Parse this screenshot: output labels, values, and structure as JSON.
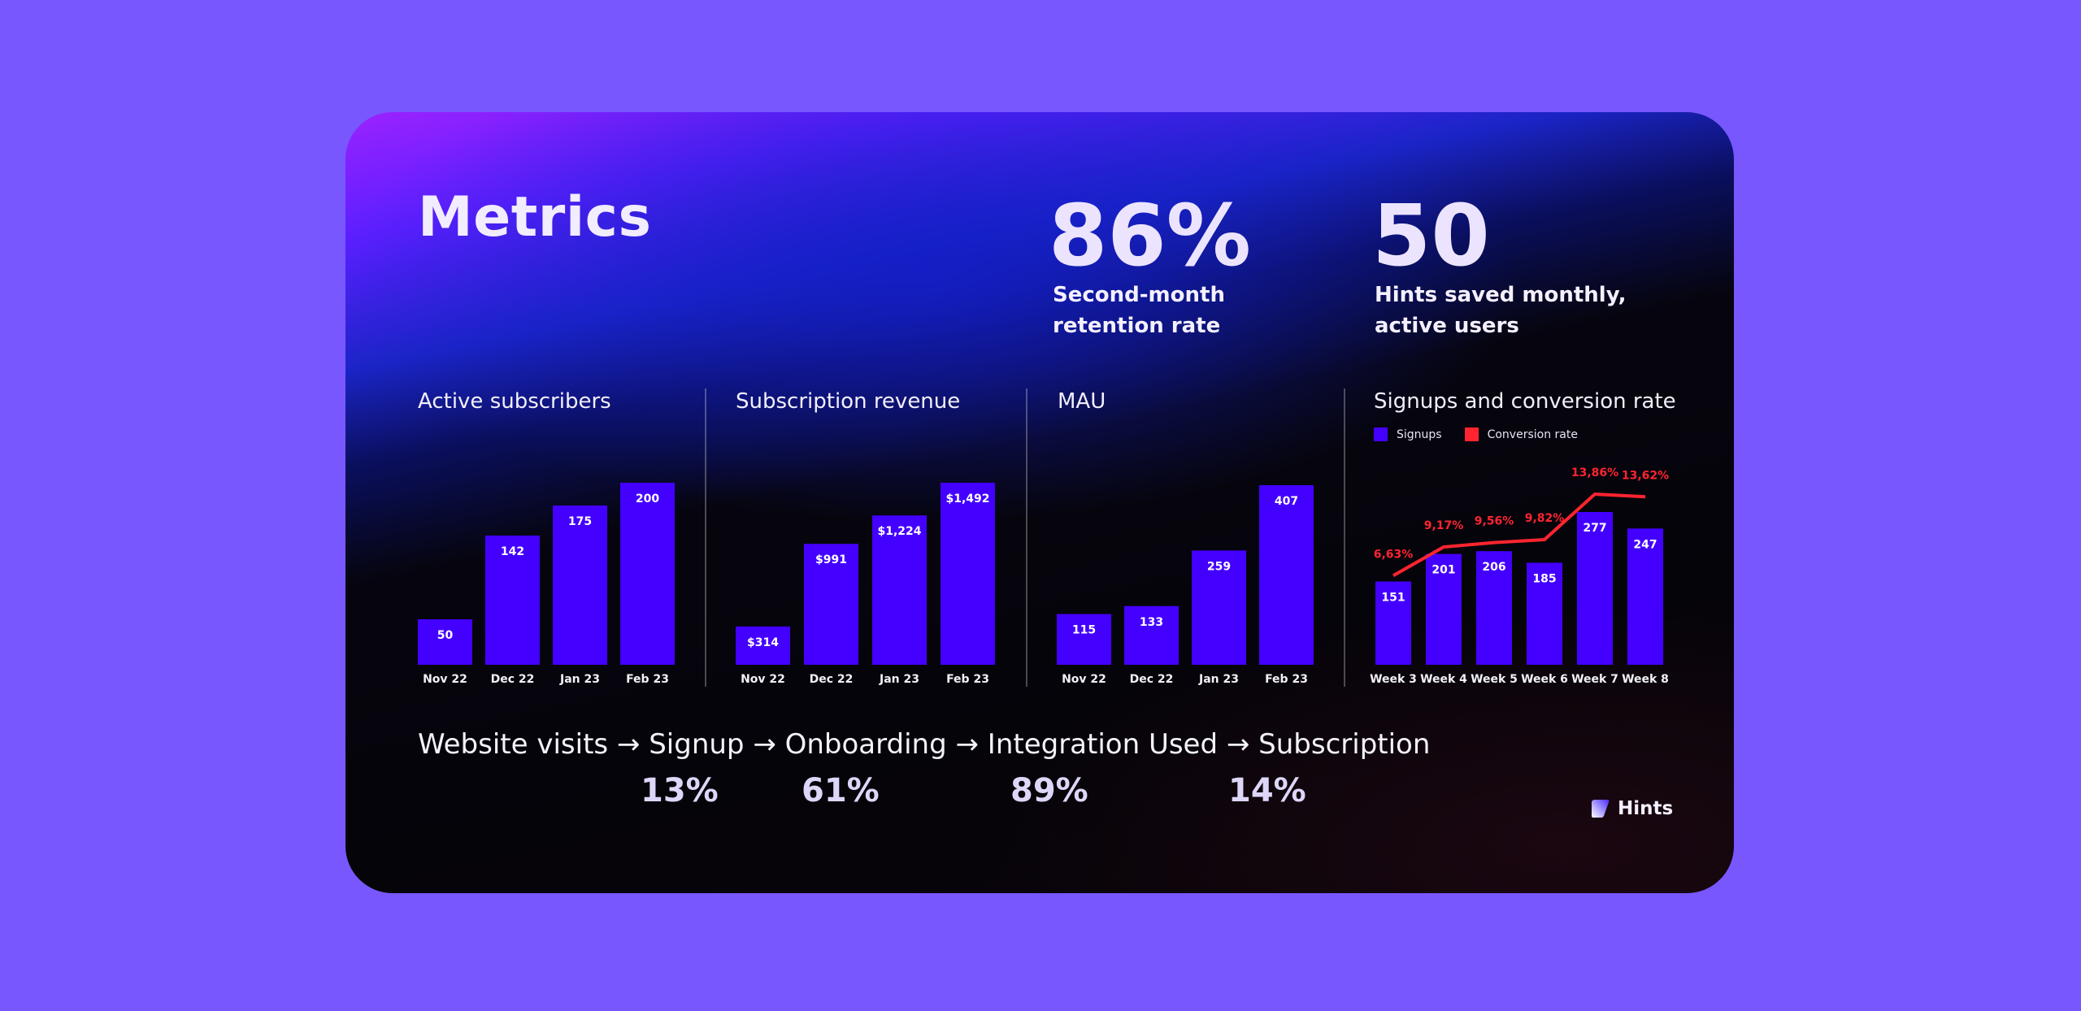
{
  "title": "Metrics",
  "kpis": [
    {
      "value": "86%",
      "caption_line1": "Second-month",
      "caption_line2": "retention rate"
    },
    {
      "value": "50",
      "caption_line1": "Hints saved monthly,",
      "caption_line2": "active users"
    }
  ],
  "colors": {
    "background": "#7857ff",
    "bar": "#4400ff",
    "line": "#ff2430",
    "text": "#ffffff"
  },
  "chart_data": [
    {
      "type": "bar",
      "title": "Active subscribers",
      "categories": [
        "Nov 22",
        "Dec 22",
        "Jan 23",
        "Feb 23"
      ],
      "values": [
        50,
        142,
        175,
        200
      ],
      "labels": [
        "50",
        "142",
        "175",
        "200"
      ]
    },
    {
      "type": "bar",
      "title": "Subscription revenue",
      "categories": [
        "Nov 22",
        "Dec 22",
        "Jan 23",
        "Feb 23"
      ],
      "values": [
        314,
        991,
        1224,
        1492
      ],
      "labels": [
        "$314",
        "$991",
        "$1,224",
        "$1,492"
      ]
    },
    {
      "type": "bar",
      "title": "MAU",
      "categories": [
        "Nov 22",
        "Dec 22",
        "Jan 23",
        "Feb 23"
      ],
      "values": [
        115,
        133,
        259,
        407
      ],
      "labels": [
        "115",
        "133",
        "259",
        "407"
      ]
    },
    {
      "type": "bar+line",
      "title": "Signups and conversion rate",
      "categories": [
        "Week 3",
        "Week 4",
        "Week 5",
        "Week 6",
        "Week 7",
        "Week 8"
      ],
      "legend": [
        "Signups",
        "Conversion rate"
      ],
      "series": [
        {
          "name": "Signups",
          "values": [
            151,
            201,
            206,
            185,
            277,
            247
          ],
          "labels": [
            "151",
            "201",
            "206",
            "185",
            "277",
            "247"
          ]
        },
        {
          "name": "Conversion rate",
          "values": [
            6.63,
            9.17,
            9.56,
            9.82,
            13.86,
            13.62
          ],
          "labels": [
            "6,63%",
            "9,17%",
            "9,56%",
            "9,82%",
            "13,86%",
            "13,62%"
          ]
        }
      ]
    }
  ],
  "funnel": {
    "steps": "Website visits → Signup → Onboarding → Integration Used → Subscription",
    "rates": [
      "13%",
      "61%",
      "89%",
      "14%"
    ]
  },
  "brand": {
    "name": "Hints"
  }
}
